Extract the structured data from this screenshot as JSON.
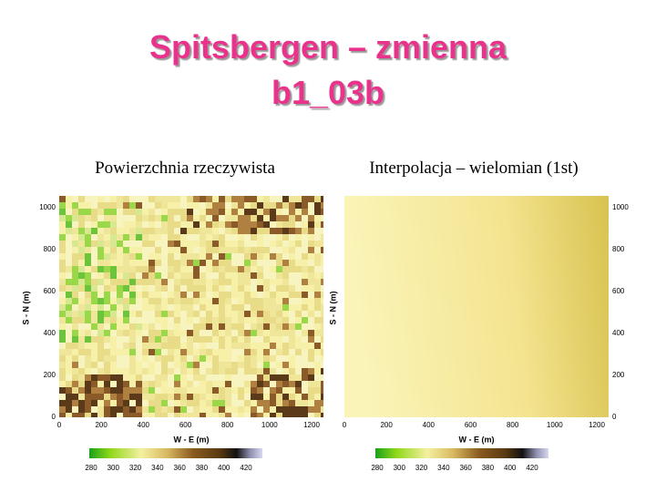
{
  "title": [
    "Spitsbergen – zmienna",
    "b1_03b"
  ],
  "panels": [
    {
      "caption": "Powierzchnia rzeczywista",
      "x_label": "W - E (m)",
      "y_label": "S - N (m)",
      "xticks": [
        0,
        200,
        400,
        600,
        800,
        1000,
        1200
      ],
      "yticks": [
        0,
        200,
        400,
        600,
        800,
        1000
      ],
      "colorbar_ticks": [
        280,
        300,
        320,
        340,
        360,
        380,
        400,
        420
      ]
    },
    {
      "caption": "Interpolacja – wielomian (1st)",
      "x_label": "W - E (m)",
      "y_label": "S - N (m)",
      "xticks": [
        0,
        200,
        400,
        600,
        800,
        1000,
        1200
      ],
      "yticks": [
        0,
        200,
        400,
        600,
        800,
        1000
      ],
      "colorbar_ticks": [
        280,
        300,
        320,
        340,
        360,
        380,
        400,
        420
      ]
    }
  ]
}
